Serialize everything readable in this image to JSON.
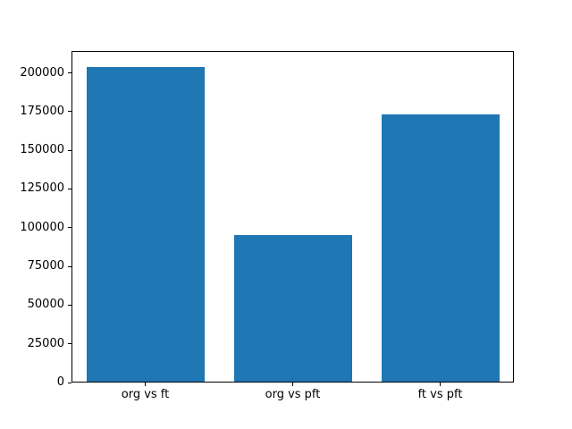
{
  "chart_data": {
    "type": "bar",
    "title": "",
    "xlabel": "",
    "ylabel": "",
    "categories": [
      "org vs ft",
      "org vs pft",
      "ft vs pft"
    ],
    "values": [
      204000,
      95000,
      173000
    ],
    "yticks": [
      0,
      25000,
      50000,
      75000,
      100000,
      125000,
      150000,
      175000,
      200000
    ],
    "ytick_labels": [
      "0",
      "25000",
      "50000",
      "75000",
      "100000",
      "125000",
      "150000",
      "175000",
      "200000"
    ],
    "ylim": [
      0,
      214200
    ],
    "grid": false,
    "legend": null,
    "bar_color": "#1f77b4",
    "axis_color": "#000000",
    "text_color": "#000000",
    "background_color": "#ffffff",
    "bar_width_fraction": 0.8
  }
}
